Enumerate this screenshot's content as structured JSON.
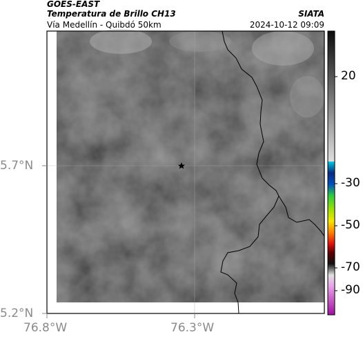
{
  "header": {
    "satellite": "GOES-EAST",
    "product": "Temperatura de Brillo CH13",
    "organization": "SIATA",
    "location": "Vía Medellín - Quibdó 50km",
    "datetime": "2024-10-12 09:09"
  },
  "map": {
    "lat_ticks": [
      "5.7°N",
      "5.2°N"
    ],
    "lon_ticks": [
      "76.8°W",
      "76.3°W"
    ],
    "marker": "star"
  },
  "colorbar": {
    "tick_labels": [
      "20",
      "-30",
      "-50",
      "-70",
      "-90"
    ],
    "colors": {
      "gray_ramp": [
        "#0c0c0c",
        "#dedede"
      ],
      "cyan": "#00bcd4",
      "navy": "#0a2a80",
      "green": "#2ecc40",
      "yellow": "#f5e600",
      "red": "#e01010",
      "magenta": "#c030c0"
    }
  }
}
